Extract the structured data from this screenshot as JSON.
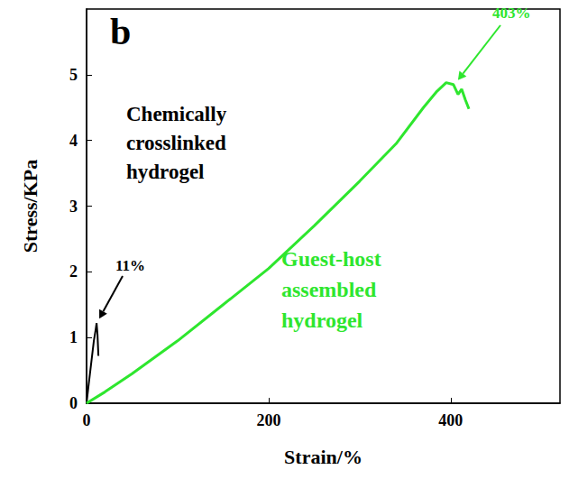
{
  "chart_data": {
    "type": "line",
    "panel": "b",
    "xlabel": "Strain/%",
    "ylabel": "Stress/KPa",
    "xlim": [
      0,
      520
    ],
    "ylim": [
      0,
      6
    ],
    "xticks": [
      0,
      200,
      400
    ],
    "yticks": [
      0,
      1,
      2,
      3,
      4,
      5
    ],
    "grid": false,
    "series": [
      {
        "name": "Chemically crosslinked hydrogel",
        "color": "#000000",
        "x": [
          0,
          2,
          5,
          8,
          10,
          11,
          12,
          13
        ],
        "values": [
          0,
          0.25,
          0.6,
          0.95,
          1.12,
          1.22,
          1.05,
          0.72
        ]
      },
      {
        "name": "Guest-host assembled hydrogel",
        "color": "#2ee62e",
        "x": [
          0,
          20,
          50,
          100,
          150,
          200,
          250,
          300,
          340,
          370,
          385,
          395,
          403,
          408,
          412,
          416,
          420
        ],
        "values": [
          0,
          0.17,
          0.45,
          0.95,
          1.5,
          2.05,
          2.7,
          3.38,
          3.95,
          4.5,
          4.75,
          4.88,
          4.85,
          4.7,
          4.78,
          4.62,
          4.48
        ]
      }
    ],
    "annotations": [
      {
        "text": "11%",
        "x": 11,
        "y": 1.22,
        "color": "#000000"
      },
      {
        "text": "403%",
        "x": 403,
        "y": 4.85,
        "color": "#2ee62e"
      }
    ]
  }
}
